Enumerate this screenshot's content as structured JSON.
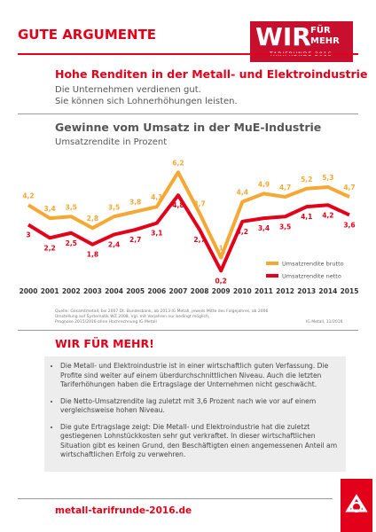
{
  "header": {
    "title": "GUTE ARGUMENTE",
    "logo": {
      "main": "WIR",
      "sub1": "FÜR",
      "sub2": "MEHR",
      "tag": "TARIFRUNDE 2016"
    }
  },
  "headline": "Hohe Renditen in der Metall- und Elektroindustrie",
  "intro": [
    "Die Unternehmen verdienen gut.",
    "Sie können sich Lohnerhöhungen leisten."
  ],
  "chart_data": {
    "type": "line",
    "title": "Gewinne vom Umsatz in der MuE-Industrie",
    "subtitle": "Umsatzrendite in Prozent",
    "categories": [
      "2000",
      "2001",
      "2002",
      "2003",
      "2004",
      "2005",
      "2006",
      "2007",
      "2008",
      "2009",
      "2010",
      "2011",
      "2012",
      "2013",
      "2014",
      "2015"
    ],
    "series": [
      {
        "name": "Umsatzrendite brutto",
        "color": "#f5a833",
        "values": [
          4.2,
          3.4,
          3.5,
          2.8,
          3.5,
          3.8,
          4.1,
          6.2,
          3.7,
          1,
          4.4,
          4.9,
          4.7,
          5.2,
          5.3,
          4.7
        ],
        "value_labels": [
          "4,2",
          "3,4",
          "3,5",
          "2,8",
          "3,5",
          "3,8",
          "4,1",
          "6,2",
          "3,7",
          "1",
          "4,4",
          "4,9",
          "4,7",
          "5,2",
          "5,3",
          "4,7"
        ]
      },
      {
        "name": "Umsatzrendite netto",
        "color": "#e2001a",
        "values": [
          3,
          2.2,
          2.5,
          1.8,
          2.4,
          2.7,
          3.1,
          4.8,
          2.7,
          0.2,
          3.2,
          3.4,
          3.5,
          4.1,
          4.2,
          3.6
        ],
        "value_labels": [
          "3",
          "2,2",
          "2,5",
          "1,8",
          "2,4",
          "2,7",
          "3,1",
          "4,8",
          "2,7",
          "0,2",
          "3,2",
          "3,4",
          "3,5",
          "4,1",
          "4,2",
          "3,6"
        ]
      }
    ]
  },
  "source": [
    "Quelle: Gesamtmetall, bis 2007 Dt. Bundesbank, ab 2013 IG Metall, jeweils Mitte des Folgejahres, ab 2006",
    "Umstellung auf Systematik WZ 2008, Vgl. mit Vorjahren nur bedingt möglich,",
    "Prognose 2015/2016 ohne Hochrechnung IG Metall"
  ],
  "credit": "IG Metall, 11/2016",
  "section": {
    "title": "WIR FÜR MEHR!",
    "bullets": [
      "Die Metall- und Elektroindustrie ist in einer wirtschaftlich guten Verfassung. Die Profite sind weiter auf einem überdurchschnittlichen Niveau. Auch die letzten Tariferhöhungen haben die Ertragslage der Unternehmen nicht geschwächt.",
      "Die Netto-Umsatzrendite lag zuletzt mit 3,6 Prozent nach wie vor auf einem vergleichsweise hohen Niveau.",
      "Die gute Ertragslage zeigt: Die Metall- und Elektroindustrie hat die zuletzt gestiegenen Lohnstückkosten sehr gut verkraftet. In dieser wirtschaftlichen Situation gibt es keinen Grund, den Beschäftigten einen angemessenen Anteil am wirtschaftlichen Erfolg zu verwehren."
    ]
  },
  "footer": {
    "url": "metall-tarifrunde-2016.de"
  }
}
